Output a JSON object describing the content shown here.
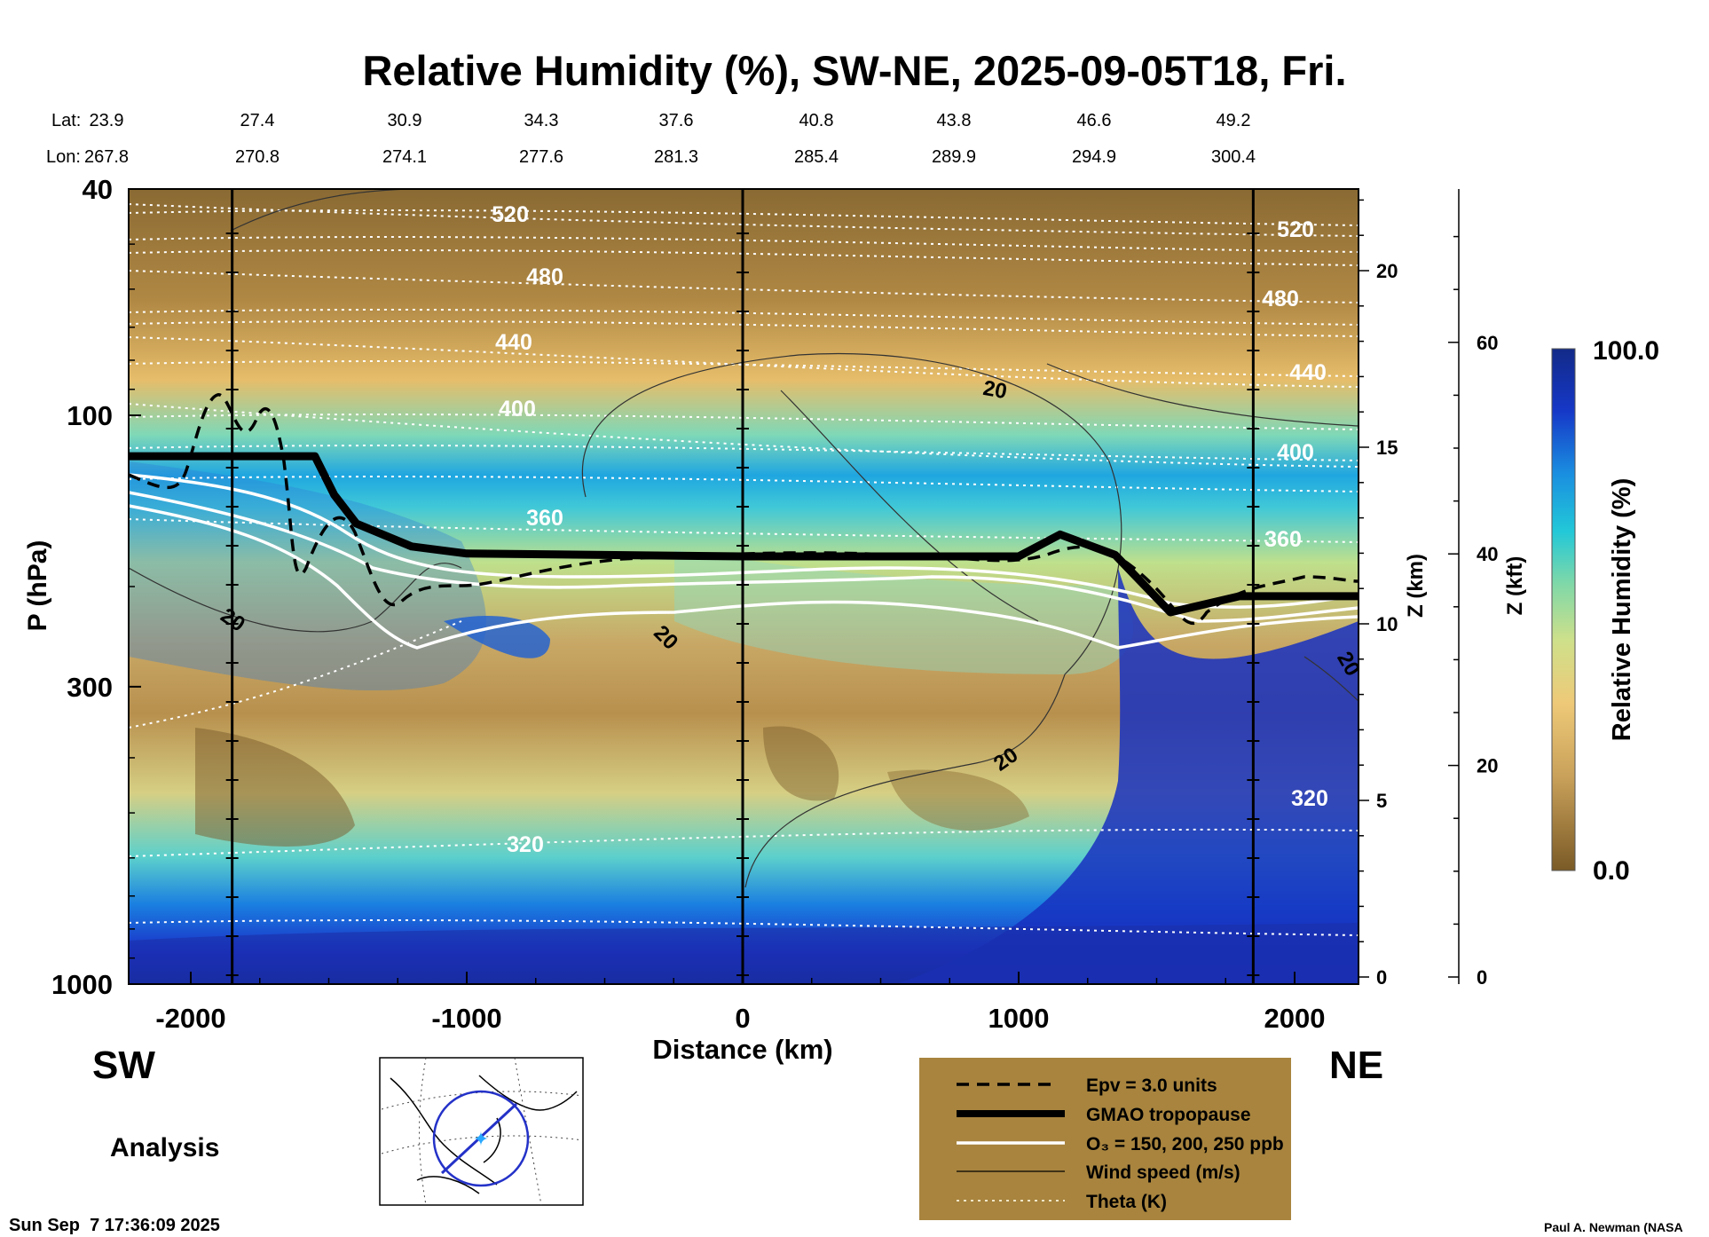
{
  "chart_data": {
    "type": "heatmap",
    "title": "Relative Humidity (%), SW-NE, 2025-09-05T18, Fri.",
    "xlabel": "Distance (km)",
    "ylabel": "P (hPa)",
    "y2label": "Z (km)",
    "y3label": "Z (kft)",
    "xlim": [
      -2230,
      2230
    ],
    "ylim": [
      1000,
      40
    ],
    "x_ticks": [
      "-2000",
      "-1000",
      "0",
      "1000",
      "2000"
    ],
    "y_ticks": [
      "40",
      "100",
      "300",
      "1000"
    ],
    "z_km_ticks": [
      "0",
      "5",
      "10",
      "15",
      "20"
    ],
    "z_kft_ticks": [
      "0",
      "20",
      "40",
      "60"
    ],
    "lat_label": "Lat:",
    "lon_label": "Lon:",
    "lat_values": [
      "23.9",
      "27.4",
      "30.9",
      "34.3",
      "37.6",
      "40.8",
      "43.8",
      "46.6",
      "49.2"
    ],
    "lon_values": [
      "267.8",
      "270.8",
      "274.1",
      "277.6",
      "281.3",
      "285.4",
      "289.9",
      "294.9",
      "300.4"
    ],
    "colorbar": {
      "label": "Relative Humidity (%)",
      "min": "0.0",
      "max": "100.0"
    },
    "theta_contours_K": [
      {
        "label": "520",
        "value": 520
      },
      {
        "label": "480",
        "value": 480
      },
      {
        "label": "440",
        "value": 440
      },
      {
        "label": "400",
        "value": 400
      },
      {
        "label": "360",
        "value": 360
      },
      {
        "label": "320",
        "value": 320
      }
    ],
    "wind_speed_label": "20",
    "tropopause_hPa": [
      [
        -2230,
        118
      ],
      [
        -1550,
        118
      ],
      [
        -1480,
        138
      ],
      [
        -1400,
        155
      ],
      [
        -1200,
        170
      ],
      [
        -1000,
        175
      ],
      [
        0,
        177
      ],
      [
        1000,
        177
      ],
      [
        1150,
        162
      ],
      [
        1350,
        176
      ],
      [
        1550,
        222
      ],
      [
        1800,
        208
      ],
      [
        2230,
        208
      ]
    ],
    "legend": [
      {
        "label": "Epv = 3.0 units",
        "style": "dashed"
      },
      {
        "label": "GMAO tropopause",
        "style": "thick"
      },
      {
        "label": "O₃ = 150, 200, 250 ppb",
        "style": "white"
      },
      {
        "label": "Wind speed (m/s)",
        "style": "thin"
      },
      {
        "label": "Theta (K)",
        "style": "dotted"
      }
    ]
  },
  "labels": {
    "sw": "SW",
    "ne": "NE",
    "analysis": "Analysis",
    "timestamp": "Sun Sep  7 17:36:09 2025",
    "credit": "Paul A. Newman (NASA"
  }
}
